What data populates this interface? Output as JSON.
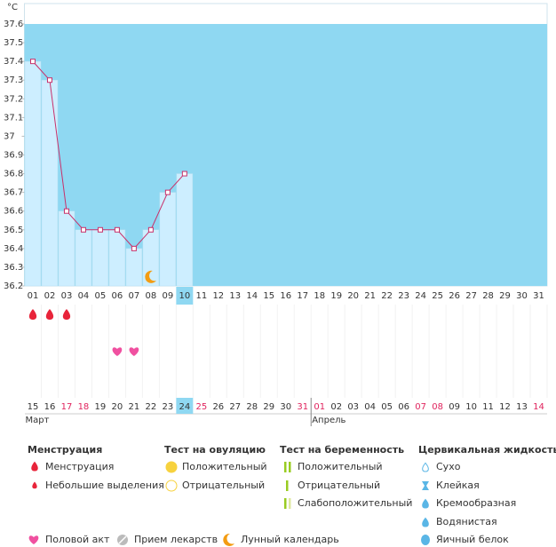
{
  "chart_data": {
    "type": "line",
    "y_label": "°C",
    "categories": [
      "01",
      "02",
      "03",
      "04",
      "05",
      "06",
      "07",
      "08",
      "09",
      "10",
      "11",
      "12",
      "13",
      "14",
      "15",
      "16",
      "17",
      "18",
      "19",
      "20",
      "21",
      "22",
      "23",
      "24",
      "25",
      "26",
      "27",
      "28",
      "29",
      "30",
      "31"
    ],
    "values": [
      37.4,
      37.3,
      36.6,
      36.5,
      36.5,
      36.5,
      36.4,
      36.5,
      36.7,
      36.8,
      null,
      null,
      null,
      null,
      null,
      null,
      null,
      null,
      null,
      null,
      null,
      null,
      null,
      null,
      null,
      null,
      null,
      null,
      null,
      null,
      null
    ],
    "color": "#c8306a",
    "bar_color": "#cdeeff",
    "background_color": "#8fd8f2",
    "ylim": [
      36.2,
      37.6
    ],
    "yticks": [
      36.2,
      36.3,
      36.4,
      36.5,
      36.6,
      36.7,
      36.8,
      36.9,
      37,
      37.1,
      37.2,
      37.3,
      37.4,
      37.5,
      37.6
    ],
    "selected_index": 9,
    "dates": [
      "15",
      "16",
      "17",
      "18",
      "19",
      "20",
      "21",
      "22",
      "23",
      "24",
      "25",
      "26",
      "27",
      "28",
      "29",
      "30",
      "31",
      "01",
      "02",
      "03",
      "04",
      "05",
      "06",
      "07",
      "08",
      "09",
      "10",
      "11",
      "12",
      "13",
      "14"
    ],
    "weekend_indices": [
      2,
      3,
      10,
      16,
      17,
      23,
      24,
      30
    ],
    "months": [
      {
        "label": "Март",
        "index": 0
      },
      {
        "label": "Апрель",
        "index": 17
      }
    ],
    "menstruation_days": [
      0,
      1,
      2
    ],
    "intercourse_days": [
      5,
      6
    ],
    "moon_day": 7
  },
  "legend": {
    "sections": [
      {
        "title": "Менструация",
        "items": [
          "Менструация",
          "Небольшие выделения"
        ]
      },
      {
        "title": "Тест на овуляцию",
        "items": [
          "Положительный",
          "Отрицательный"
        ]
      },
      {
        "title": "Тест на беременность",
        "items": [
          "Положительный",
          "Отрицательный",
          "Слабоположительный"
        ]
      },
      {
        "title": "Цервикальная жидкость",
        "items": [
          "Сухо",
          "Клейкая",
          "Кремообразная",
          "Водянистая",
          "Яичный белок"
        ]
      }
    ],
    "extra": [
      "Половой акт",
      "Прием лекарств",
      "Лунный календарь"
    ]
  }
}
